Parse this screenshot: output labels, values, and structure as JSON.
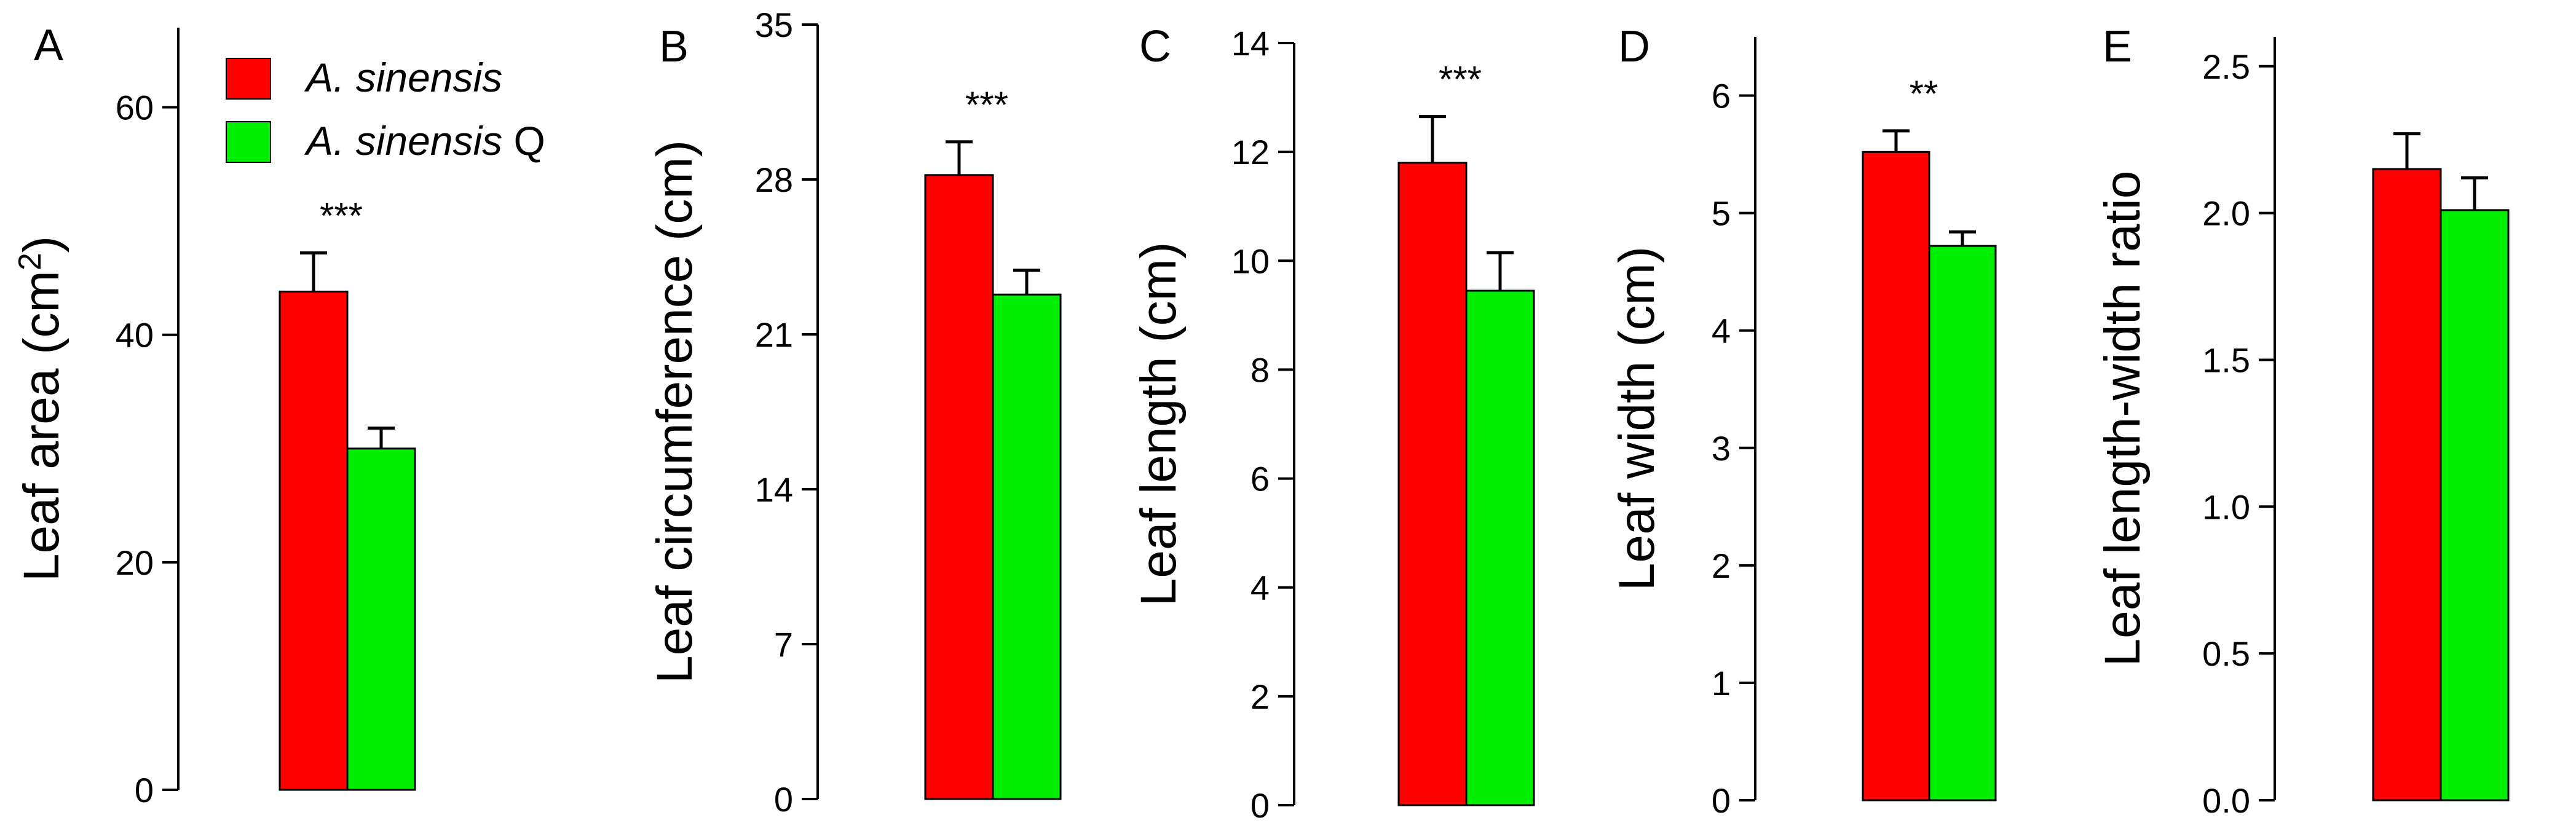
{
  "legend": {
    "entries": [
      {
        "name": "A. sinensis",
        "italic_part": "A. sinensis",
        "suffix": "",
        "color": "#ff0000"
      },
      {
        "name": "A. sinensis Q",
        "italic_part": "A. sinensis",
        "suffix": " Q",
        "color": "#00ee00"
      }
    ]
  },
  "colors": {
    "series_1": "#ff0000",
    "series_2": "#00ee00",
    "axis": "#000000"
  },
  "chart_data": [
    {
      "panel": "A",
      "type": "bar",
      "ylabel": "Leaf area (cm2)",
      "ylabel_main": "Leaf area (cm",
      "ylabel_sup": "2",
      "ylabel_close": ")",
      "ylim": [
        0,
        67
      ],
      "ticks": [
        0,
        20,
        40,
        60
      ],
      "tick_labels": [
        "0",
        "20",
        "40",
        "60"
      ],
      "series": [
        {
          "name": "A. sinensis",
          "value": 43.8,
          "error": 3.4
        },
        {
          "name": "A. sinensis Q",
          "value": 30.0,
          "error": 1.8
        }
      ],
      "significance": "***"
    },
    {
      "panel": "B",
      "type": "bar",
      "ylabel": "Leaf circumference (cm)",
      "ylim": [
        0,
        35
      ],
      "ticks": [
        0,
        7,
        14,
        21,
        28,
        35
      ],
      "tick_labels": [
        "0",
        "7",
        "14",
        "21",
        "28",
        "35"
      ],
      "series": [
        {
          "name": "A. sinensis",
          "value": 28.2,
          "error": 1.5
        },
        {
          "name": "A. sinensis Q",
          "value": 22.8,
          "error": 1.1
        }
      ],
      "significance": "***"
    },
    {
      "panel": "C",
      "type": "bar",
      "ylabel": "Leaf length (cm)",
      "ylim": [
        0,
        14
      ],
      "ticks": [
        0,
        2,
        4,
        6,
        8,
        10,
        12,
        14
      ],
      "tick_labels": [
        "0",
        "2",
        "4",
        "6",
        "8",
        "10",
        "12",
        "14"
      ],
      "series": [
        {
          "name": "A. sinensis",
          "value": 11.8,
          "error": 0.85
        },
        {
          "name": "A. sinensis Q",
          "value": 9.45,
          "error": 0.7
        }
      ],
      "significance": "***"
    },
    {
      "panel": "D",
      "type": "bar",
      "ylabel": "Leaf width (cm)",
      "ylim": [
        0,
        6.5
      ],
      "ticks": [
        0,
        1,
        2,
        3,
        4,
        5,
        6
      ],
      "tick_labels": [
        "0",
        "1",
        "2",
        "3",
        "4",
        "5",
        "6"
      ],
      "series": [
        {
          "name": "A. sinensis",
          "value": 5.52,
          "error": 0.18
        },
        {
          "name": "A. sinensis Q",
          "value": 4.72,
          "error": 0.12
        }
      ],
      "significance": "**"
    },
    {
      "panel": "E",
      "type": "bar",
      "ylabel": "Leaf length-width ratio",
      "ylim": [
        0,
        2.6
      ],
      "ticks": [
        0,
        0.5,
        1.0,
        1.5,
        2.0,
        2.5
      ],
      "tick_labels": [
        "0.0",
        "0.5",
        "1.0",
        "1.5",
        "2.0",
        "2.5"
      ],
      "series": [
        {
          "name": "A. sinensis",
          "value": 2.15,
          "error": 0.12
        },
        {
          "name": "A. sinensis Q",
          "value": 2.01,
          "error": 0.11
        }
      ],
      "significance": ""
    }
  ]
}
